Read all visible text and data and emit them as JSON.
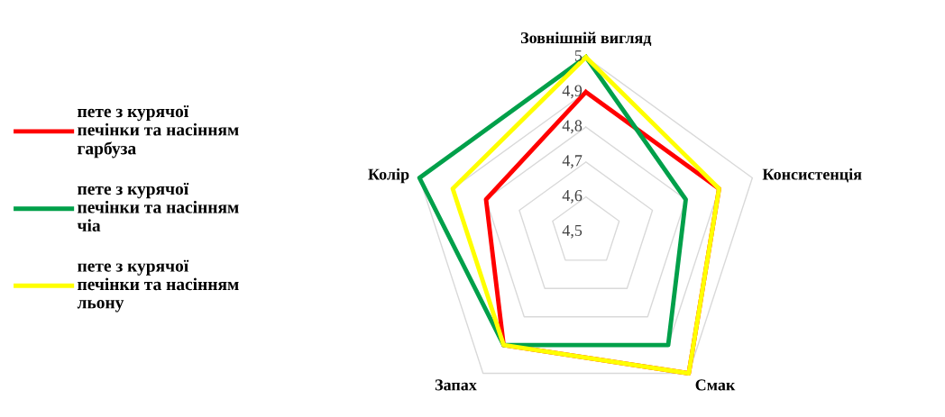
{
  "chart_data": {
    "type": "radar",
    "categories": [
      "Зовнішній вигляд",
      "Консистенція",
      "Смак",
      "Запах",
      "Колір"
    ],
    "series": [
      {
        "name": "пете з курячої\nпечінки та насінням\nгарбуза",
        "color": "#ff0000",
        "values": [
          4.9,
          4.9,
          5,
          4.9,
          4.8
        ]
      },
      {
        "name": "пете з курячої\nпечінки та насінням\nчіа",
        "color": "#00a04a",
        "values": [
          5,
          4.8,
          4.9,
          4.9,
          5
        ]
      },
      {
        "name": "пете з курячої\nпечінки та насінням\nльону",
        "color": "#ffff00",
        "values": [
          5,
          4.9,
          5,
          4.9,
          4.9
        ]
      }
    ],
    "ylim": [
      4.5,
      5
    ],
    "yticks": [
      {
        "value": 4.5,
        "label": "4,5"
      },
      {
        "value": 4.6,
        "label": "4,6"
      },
      {
        "value": 4.7,
        "label": "4,7"
      },
      {
        "value": 4.8,
        "label": "4,8"
      },
      {
        "value": 4.9,
        "label": "4,9"
      },
      {
        "value": 5,
        "label": "5"
      }
    ],
    "grid": true,
    "legend": "left"
  }
}
